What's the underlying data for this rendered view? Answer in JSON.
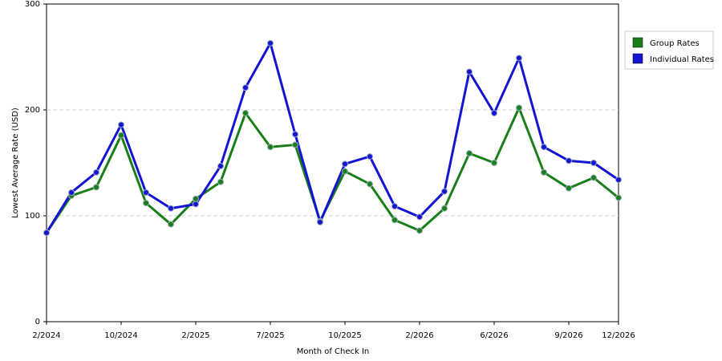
{
  "chart_data": {
    "type": "line",
    "x_label": "Month of Check In",
    "y_label": "Lowest Average Rate (USD)",
    "categories": [
      "2/2024",
      null,
      null,
      "10/2024",
      null,
      null,
      "2/2025",
      null,
      null,
      "7/2025",
      null,
      null,
      "10/2025",
      null,
      null,
      "2/2026",
      null,
      null,
      "6/2026",
      null,
      null,
      "9/2026",
      null,
      "12/2026"
    ],
    "series": [
      {
        "name": "Group Rates",
        "color": "#1a7f1a",
        "values": [
          84,
          119,
          127,
          176,
          112,
          92,
          116,
          132,
          197,
          165,
          167,
          95,
          142,
          130,
          96,
          86,
          107,
          159,
          150,
          202,
          141,
          126,
          136,
          117
        ]
      },
      {
        "name": "Individual Rates",
        "color": "#1414d2",
        "values": [
          84,
          122,
          141,
          186,
          122,
          107,
          111,
          147,
          221,
          263,
          177,
          94,
          149,
          156,
          109,
          99,
          123,
          236,
          197,
          249,
          165,
          152,
          150,
          134
        ]
      }
    ],
    "ylim": [
      0,
      300
    ],
    "yticks": [
      0,
      100,
      200,
      300
    ],
    "grid": true
  }
}
